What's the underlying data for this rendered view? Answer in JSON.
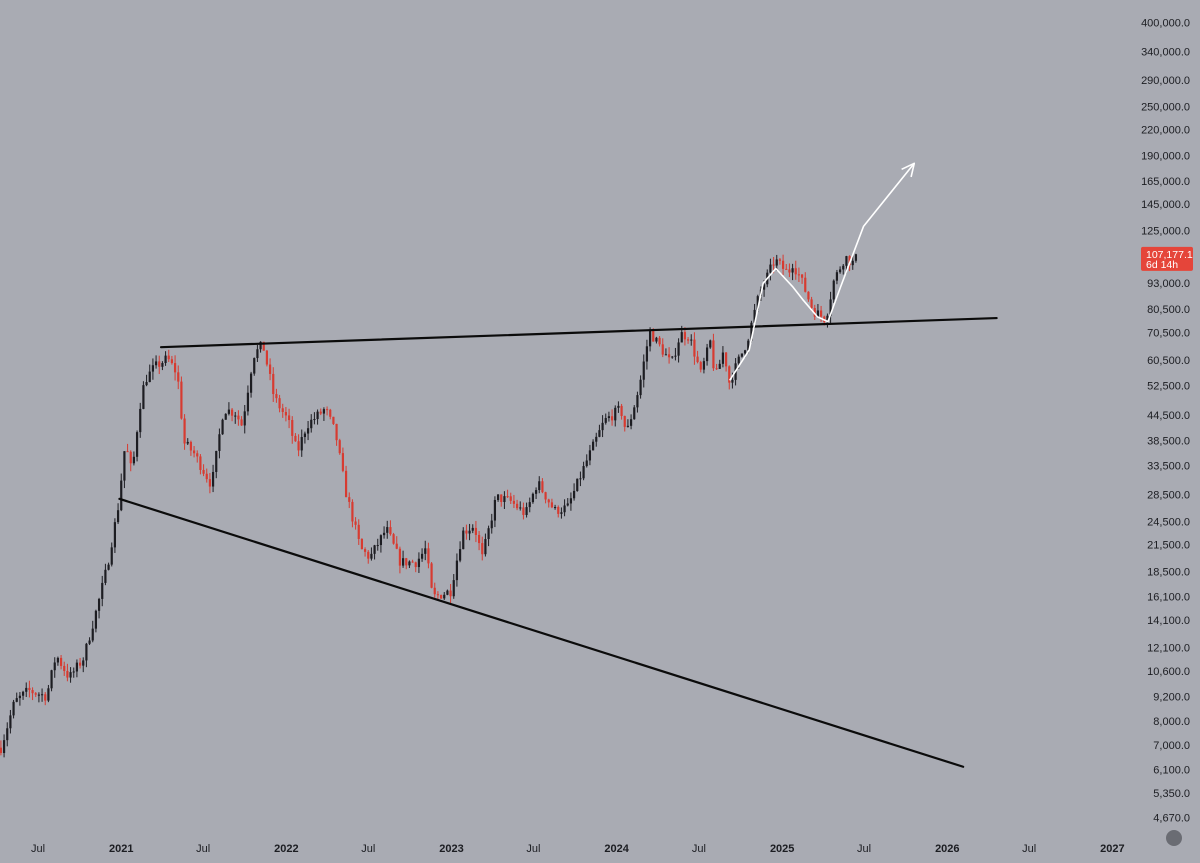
{
  "chart_data": {
    "type": "candlestick",
    "y_scale": "log",
    "ylim": [
      4400,
      420000
    ],
    "x_range": [
      "2020-04-08",
      "2027-03-14"
    ],
    "price_ticks": [
      {
        "value": 400000,
        "label": "400,000.0"
      },
      {
        "value": 340000,
        "label": "340,000.0"
      },
      {
        "value": 290000,
        "label": "290,000.0"
      },
      {
        "value": 250000,
        "label": "250,000.0"
      },
      {
        "value": 220000,
        "label": "220,000.0"
      },
      {
        "value": 190000,
        "label": "190,000.0"
      },
      {
        "value": 165000,
        "label": "165,000.0"
      },
      {
        "value": 145000,
        "label": "145,000.0"
      },
      {
        "value": 125000,
        "label": "125,000.0"
      },
      {
        "value": 93000,
        "label": "93,000.0"
      },
      {
        "value": 80500,
        "label": "80,500.0"
      },
      {
        "value": 70500,
        "label": "70,500.0"
      },
      {
        "value": 60500,
        "label": "60,500.0"
      },
      {
        "value": 52500,
        "label": "52,500.0"
      },
      {
        "value": 44500,
        "label": "44,500.0"
      },
      {
        "value": 38500,
        "label": "38,500.0"
      },
      {
        "value": 33500,
        "label": "33,500.0"
      },
      {
        "value": 28500,
        "label": "28,500.0"
      },
      {
        "value": 24500,
        "label": "24,500.0"
      },
      {
        "value": 21500,
        "label": "21,500.0"
      },
      {
        "value": 18500,
        "label": "18,500.0"
      },
      {
        "value": 16100,
        "label": "16,100.0"
      },
      {
        "value": 14100,
        "label": "14,100.0"
      },
      {
        "value": 12100,
        "label": "12,100.0"
      },
      {
        "value": 10600,
        "label": "10,600.0"
      },
      {
        "value": 9200,
        "label": "9,200.0"
      },
      {
        "value": 8000,
        "label": "8,000.0"
      },
      {
        "value": 7000,
        "label": "7,000.0"
      },
      {
        "value": 6100,
        "label": "6,100.0"
      },
      {
        "value": 5350,
        "label": "5,350.0"
      },
      {
        "value": 4670,
        "label": "4,670.0"
      }
    ],
    "time_ticks": [
      {
        "date": "2020-07-01",
        "label": "Jul",
        "year": false
      },
      {
        "date": "2021-01-01",
        "label": "2021",
        "year": true
      },
      {
        "date": "2021-07-01",
        "label": "Jul",
        "year": false
      },
      {
        "date": "2022-01-01",
        "label": "2022",
        "year": true
      },
      {
        "date": "2022-07-01",
        "label": "Jul",
        "year": false
      },
      {
        "date": "2023-01-01",
        "label": "2023",
        "year": true
      },
      {
        "date": "2023-07-01",
        "label": "Jul",
        "year": false
      },
      {
        "date": "2024-01-01",
        "label": "2024",
        "year": true
      },
      {
        "date": "2024-07-01",
        "label": "Jul",
        "year": false
      },
      {
        "date": "2025-01-01",
        "label": "2025",
        "year": true
      },
      {
        "date": "2025-07-01",
        "label": "Jul",
        "year": false
      },
      {
        "date": "2026-01-01",
        "label": "2026",
        "year": true
      },
      {
        "date": "2026-07-01",
        "label": "Jul",
        "year": false
      },
      {
        "date": "2027-01-01",
        "label": "2027",
        "year": true
      }
    ],
    "price_anchors": [
      [
        "2020-04-10",
        6900
      ],
      [
        "2020-05-10",
        8900
      ],
      [
        "2020-06-10",
        9500
      ],
      [
        "2020-07-20",
        9200
      ],
      [
        "2020-08-10",
        11600
      ],
      [
        "2020-09-08",
        10200
      ],
      [
        "2020-10-10",
        11400
      ],
      [
        "2020-11-10",
        15300
      ],
      [
        "2020-12-01",
        19000
      ],
      [
        "2020-12-25",
        26500
      ],
      [
        "2021-01-10",
        38000
      ],
      [
        "2021-01-25",
        32000
      ],
      [
        "2021-02-10",
        46000
      ],
      [
        "2021-02-22",
        54000
      ],
      [
        "2021-03-15",
        58000
      ],
      [
        "2021-04-13",
        61000
      ],
      [
        "2021-05-05",
        56000
      ],
      [
        "2021-05-20",
        38000
      ],
      [
        "2021-06-10",
        36000
      ],
      [
        "2021-07-20",
        30000
      ],
      [
        "2021-08-15",
        46000
      ],
      [
        "2021-09-10",
        45000
      ],
      [
        "2021-09-25",
        42000
      ],
      [
        "2021-10-20",
        62000
      ],
      [
        "2021-11-10",
        66000
      ],
      [
        "2021-12-05",
        49000
      ],
      [
        "2022-01-05",
        43000
      ],
      [
        "2022-01-25",
        36000
      ],
      [
        "2022-02-15",
        42000
      ],
      [
        "2022-03-28",
        46000
      ],
      [
        "2022-04-20",
        40000
      ],
      [
        "2022-05-12",
        29000
      ],
      [
        "2022-06-14",
        21000
      ],
      [
        "2022-07-05",
        20000
      ],
      [
        "2022-08-10",
        23500
      ],
      [
        "2022-09-10",
        19500
      ],
      [
        "2022-10-15",
        19500
      ],
      [
        "2022-11-05",
        21000
      ],
      [
        "2022-11-20",
        16000
      ],
      [
        "2022-12-30",
        16600
      ],
      [
        "2023-01-25",
        23000
      ],
      [
        "2023-02-20",
        24000
      ],
      [
        "2023-03-10",
        20000
      ],
      [
        "2023-04-10",
        28000
      ],
      [
        "2023-05-10",
        27500
      ],
      [
        "2023-06-14",
        25500
      ],
      [
        "2023-07-10",
        30500
      ],
      [
        "2023-08-17",
        26000
      ],
      [
        "2023-09-15",
        26500
      ],
      [
        "2023-10-25",
        34000
      ],
      [
        "2023-12-05",
        43000
      ],
      [
        "2024-01-10",
        46000
      ],
      [
        "2024-01-23",
        40000
      ],
      [
        "2024-02-20",
        52000
      ],
      [
        "2024-03-14",
        71000
      ],
      [
        "2024-04-15",
        63000
      ],
      [
        "2024-05-01",
        59000
      ],
      [
        "2024-05-21",
        70000
      ],
      [
        "2024-06-10",
        69000
      ],
      [
        "2024-07-05",
        56000
      ],
      [
        "2024-07-28",
        68000
      ],
      [
        "2024-08-05",
        54000
      ],
      [
        "2024-08-25",
        64000
      ],
      [
        "2024-09-06",
        53500
      ],
      [
        "2024-10-15",
        67000
      ],
      [
        "2024-11-12",
        88000
      ],
      [
        "2024-12-16",
        106000
      ],
      [
        "2025-01-15",
        98000
      ],
      [
        "2025-01-22",
        105000
      ],
      [
        "2025-02-10",
        96000
      ],
      [
        "2025-03-10",
        80000
      ],
      [
        "2025-04-07",
        76000
      ],
      [
        "2025-04-25",
        94000
      ],
      [
        "2025-05-20",
        108000
      ],
      [
        "2025-06-05",
        104000
      ],
      [
        "2025-06-15",
        107177
      ]
    ],
    "trend_lines": [
      {
        "name": "resistance",
        "from": [
          "2021-03-30",
          65000
        ],
        "to": [
          "2026-04-20",
          76500
        ]
      },
      {
        "name": "support",
        "from": [
          "2020-12-28",
          27800
        ],
        "to": [
          "2026-02-05",
          6200
        ]
      }
    ],
    "path_annotation": {
      "points": [
        [
          "2024-09-07",
          54000
        ],
        [
          "2024-10-20",
          64000
        ],
        [
          "2024-11-20",
          93000
        ],
        [
          "2024-12-18",
          101000
        ],
        [
          "2025-01-25",
          91000
        ],
        [
          "2025-02-15",
          85000
        ],
        [
          "2025-03-20",
          77000
        ],
        [
          "2025-04-12",
          75000
        ],
        [
          "2025-05-10",
          91000
        ],
        [
          "2025-06-30",
          128000
        ],
        [
          "2025-10-20",
          182000
        ]
      ],
      "arrow_end": true
    },
    "current_price": {
      "value": 107177.1,
      "label": "107,177.1",
      "countdown": "6d 14h"
    },
    "colors": {
      "background": "#a9abb3",
      "up_candle": "#1d1d22",
      "down_candle": "#d73b31",
      "trend_line": "#0b0b0b",
      "annotation": "#ffffff",
      "price_badge": "#e5453a"
    }
  }
}
